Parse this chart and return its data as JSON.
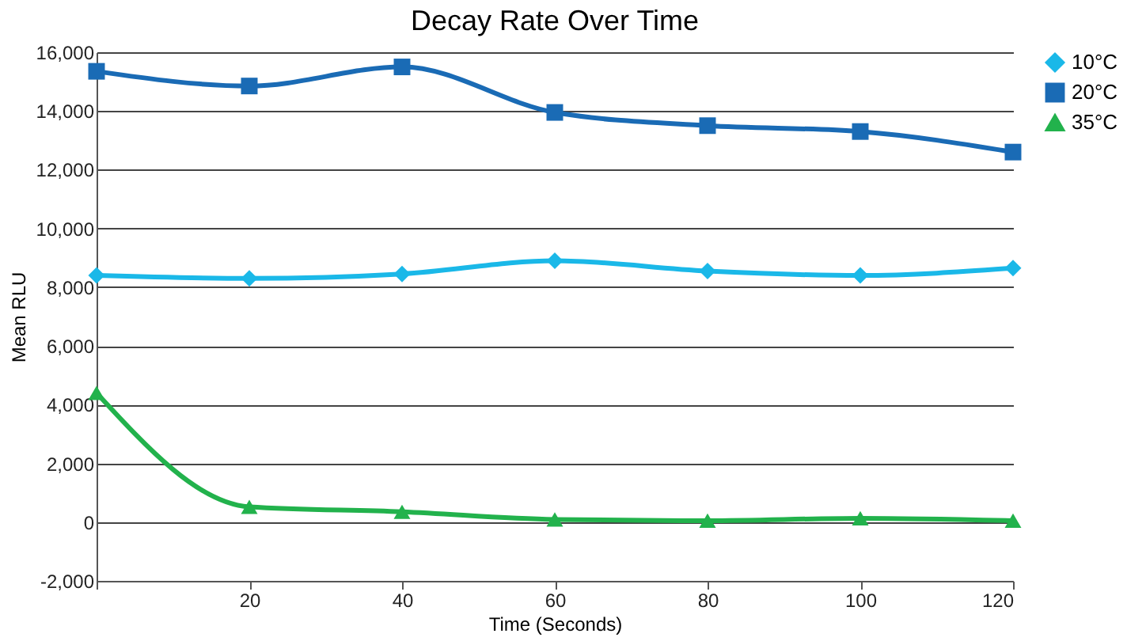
{
  "chart_data": {
    "type": "line",
    "title": "Decay Rate Over Time",
    "xlabel": "Time (Seconds)",
    "ylabel": "Mean RLU",
    "x": [
      0,
      20,
      40,
      60,
      80,
      100,
      120
    ],
    "series": [
      {
        "name": "10°C",
        "color": "#1ab8e8",
        "marker": "diamond",
        "values": [
          8400,
          8300,
          8450,
          8900,
          8550,
          8400,
          8650
        ]
      },
      {
        "name": "20°C",
        "color": "#1a6bb5",
        "marker": "square",
        "values": [
          15350,
          14850,
          15500,
          13950,
          13500,
          13300,
          12600
        ]
      },
      {
        "name": "35°C",
        "color": "#22b24c",
        "marker": "triangle",
        "values": [
          4400,
          520,
          350,
          90,
          50,
          130,
          50
        ]
      }
    ],
    "xlim": [
      0,
      120
    ],
    "xticks": [
      {
        "value": 0,
        "label": null
      },
      20,
      40,
      60,
      80,
      100,
      120
    ],
    "ylim": [
      -2000,
      16000
    ],
    "yticks": [
      {
        "value": -2000,
        "label": "-2,000"
      },
      0,
      {
        "value": 2000,
        "label": "2,000"
      },
      {
        "value": 4000,
        "label": "4,000"
      },
      {
        "value": 6000,
        "label": "6,000"
      },
      {
        "value": 8000,
        "label": "8,000"
      },
      {
        "value": 10000,
        "label": "10,000"
      },
      {
        "value": 12000,
        "label": "12,000"
      },
      {
        "value": 14000,
        "label": "14,000"
      },
      {
        "value": 16000,
        "label": "16,000"
      }
    ],
    "grid": "y",
    "legend": "right",
    "line_style": "solid"
  }
}
